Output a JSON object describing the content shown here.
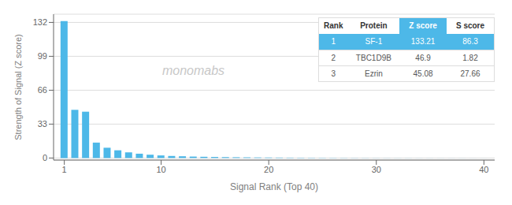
{
  "chart_data": {
    "type": "bar",
    "x": [
      1,
      2,
      3,
      4,
      5,
      6,
      7,
      8,
      9,
      10,
      11,
      12,
      13,
      14,
      15,
      16,
      17,
      18,
      19,
      20,
      21,
      22,
      23,
      24,
      25,
      26,
      27,
      28,
      29,
      30,
      31,
      32,
      33,
      34,
      35,
      36,
      37,
      38,
      39,
      40
    ],
    "values": [
      133.21,
      46.9,
      45.08,
      15.0,
      10.0,
      7.5,
      5.5,
      4.2,
      3.2,
      2.5,
      2.0,
      1.7,
      1.4,
      1.2,
      1.0,
      0.85,
      0.72,
      0.62,
      0.53,
      0.46,
      0.4,
      0.35,
      0.3,
      0.26,
      0.22,
      0.19,
      0.16,
      0.14,
      0.12,
      0.1,
      0.09,
      0.08,
      0.07,
      0.06,
      0.055,
      0.05,
      0.045,
      0.04,
      0.035,
      0.03
    ],
    "color": "#4db8e8",
    "xlabel": "Signal Rank (Top 40)",
    "ylabel": "Strength of Signal (Z score)",
    "xlim": [
      0,
      41
    ],
    "xticks": [
      1,
      10,
      20,
      30,
      40
    ],
    "ylim": [
      -2,
      140
    ],
    "yticks": [
      0,
      33,
      66,
      99,
      132
    ],
    "grid": true,
    "annotations": [
      {
        "text": "monomabs",
        "x": 13,
        "y": 85
      }
    ],
    "table": {
      "header": [
        "Rank",
        "Protein",
        "Z score",
        "S score"
      ],
      "rows": [
        [
          "1",
          "SF-1",
          "133.21",
          "86.3"
        ],
        [
          "2",
          "TBC1D9B",
          "46.9",
          "1.82"
        ],
        [
          "3",
          "Ezrin",
          "45.08",
          "27.66"
        ]
      ]
    }
  }
}
